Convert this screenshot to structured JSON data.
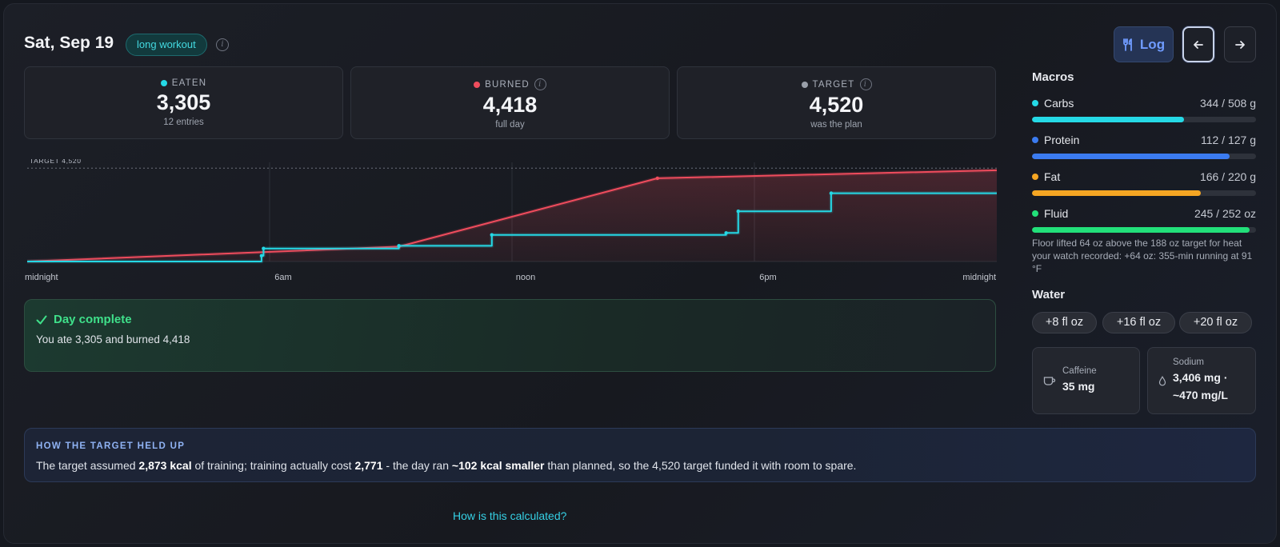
{
  "header": {
    "date": "Sat, Sep 19",
    "tag": "long workout",
    "log_label": "Log"
  },
  "stats": [
    {
      "label": "EATEN",
      "value": "3,305",
      "sub": "12 entries",
      "color": "#25d9e6"
    },
    {
      "label": "BURNED",
      "value": "4,418",
      "sub": "full day",
      "color": "#ef4d5d"
    },
    {
      "label": "TARGET",
      "value": "4,520",
      "sub": "was the plan",
      "color": "#9aa0aa"
    }
  ],
  "chart_data": {
    "type": "line",
    "target_label": "TARGET 4,520",
    "target": 4520,
    "x_ticks": [
      "midnight",
      "6am",
      "noon",
      "6pm",
      "midnight"
    ],
    "xlim": [
      0,
      24
    ],
    "ylim": [
      0,
      4800
    ],
    "series": [
      {
        "name": "burned",
        "color": "#ef4d5d",
        "step": false,
        "x": [
          0,
          9.2,
          15.6,
          24
        ],
        "y": [
          0,
          720,
          4030,
          4418
        ]
      },
      {
        "name": "eaten",
        "color": "#25d9e6",
        "step": true,
        "x": [
          0,
          5.8,
          5.85,
          9.2,
          11.5,
          17.3,
          17.6,
          19.9,
          24
        ],
        "y": [
          0,
          280,
          630,
          760,
          1290,
          1380,
          2430,
          3305,
          3305
        ]
      }
    ]
  },
  "complete": {
    "title": "Day complete",
    "text": "You ate 3,305 and burned 4,418"
  },
  "macros": {
    "title": "Macros",
    "items": [
      {
        "name": "Carbs",
        "value": "344 / 508 g",
        "fraction": 0.677,
        "color": "#25d9e6"
      },
      {
        "name": "Protein",
        "value": "112 / 127 g",
        "fraction": 0.882,
        "color": "#3b7bf0"
      },
      {
        "name": "Fat",
        "value": "166 / 220 g",
        "fraction": 0.755,
        "color": "#f5a623"
      },
      {
        "name": "Fluid",
        "value": "245 / 252 oz",
        "fraction": 0.972,
        "color": "#22e07a"
      }
    ],
    "fluid_note": "Floor lifted 64 oz above the 188 oz target for heat your watch recorded: +64 oz: 355-min running at 91 °F"
  },
  "water": {
    "title": "Water",
    "buttons": [
      "+8 fl oz",
      "+16 fl oz",
      "+20 fl oz"
    ]
  },
  "caffeine": {
    "label": "Caffeine",
    "value": "35 mg",
    "icon": "cup-icon"
  },
  "sodium": {
    "label": "Sodium",
    "value_line1": "3,406 mg ·",
    "value_line2": "~470 mg/L",
    "icon": "droplet-icon"
  },
  "summary": {
    "heading": "HOW THE TARGET HELD UP",
    "t1": "The target assumed ",
    "b1": "2,873 kcal",
    "t2": " of training; training actually cost ",
    "b2": "2,771",
    "t3": " - the day ran ",
    "b3": "~102 kcal smaller",
    "t4": " than planned, so the 4,520 target funded it with room to spare."
  },
  "calc_link": "How is this calculated?"
}
